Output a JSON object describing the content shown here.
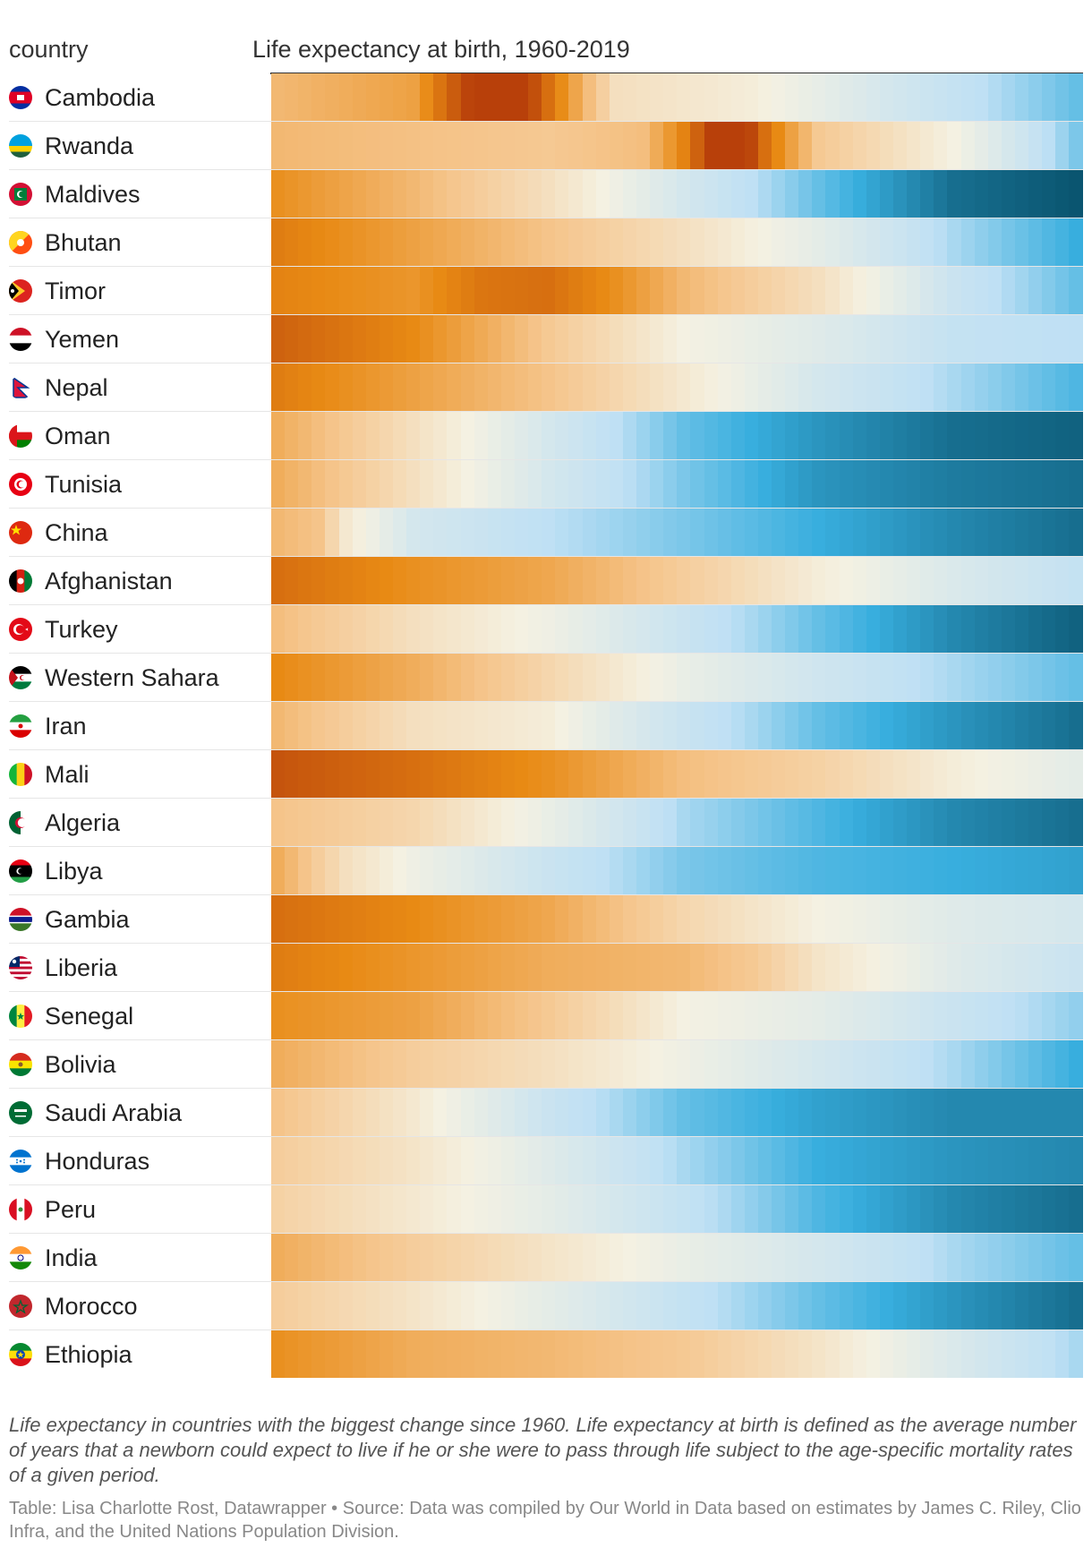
{
  "header": {
    "country_label": "country",
    "column_title": "Life expectancy at birth, 1960-2019"
  },
  "notes": {
    "description": "Life expectancy in countries with the biggest change since 1960. Life expectancy at birth is defined as the average number of years that a newborn could expect to live if he or she were to pass through life subject to the age-specific mortality rates of a given period.",
    "source": "Table: Lisa Charlotte Rost, Datawrapper • Source: Data was compiled by Our World in Data based on estimates by James C. Riley, Clio Infra, and the United Nations Population Division."
  },
  "colors": {
    "low": "#b8400a",
    "orange": "#e88a14",
    "light_orange": "#f5c48a",
    "cream": "#f4f1e2",
    "light_blue": "#bfe0f4",
    "blue": "#38aede",
    "dark_blue": "#0a5570"
  },
  "chart_data": {
    "type": "heatmap",
    "x_start": 1960,
    "x_end": 2019,
    "rows": [
      {
        "country": "Cambodia",
        "flag": "cambodia-flag",
        "anchors": [
          [
            1960,
            44
          ],
          [
            1970,
            40
          ],
          [
            1975,
            22
          ],
          [
            1977,
            18
          ],
          [
            1980,
            32
          ],
          [
            1983,
            45
          ],
          [
            1985,
            52
          ],
          [
            1995,
            55
          ],
          [
            2005,
            62
          ],
          [
            2019,
            70
          ]
        ]
      },
      {
        "country": "Rwanda",
        "flag": "rwanda-flag",
        "anchors": [
          [
            1960,
            44
          ],
          [
            1980,
            47
          ],
          [
            1987,
            45
          ],
          [
            1990,
            35
          ],
          [
            1992,
            25
          ],
          [
            1994,
            20
          ],
          [
            1996,
            32
          ],
          [
            1998,
            40
          ],
          [
            2000,
            47
          ],
          [
            2010,
            56
          ],
          [
            2019,
            69
          ]
        ]
      },
      {
        "country": "Maldives",
        "flag": "maldives-flag",
        "anchors": [
          [
            1960,
            37
          ],
          [
            1970,
            44
          ],
          [
            1980,
            52
          ],
          [
            1990,
            62
          ],
          [
            2000,
            70
          ],
          [
            2010,
            77
          ],
          [
            2019,
            79
          ]
        ]
      },
      {
        "country": "Bhutan",
        "flag": "bhutan-flag",
        "anchors": [
          [
            1960,
            34
          ],
          [
            1970,
            40
          ],
          [
            1980,
            46
          ],
          [
            1990,
            52
          ],
          [
            2000,
            59
          ],
          [
            2010,
            67
          ],
          [
            2019,
            72
          ]
        ]
      },
      {
        "country": "Timor",
        "flag": "timor-flag",
        "anchors": [
          [
            1960,
            35
          ],
          [
            1970,
            38
          ],
          [
            1975,
            33
          ],
          [
            1980,
            32
          ],
          [
            1985,
            37
          ],
          [
            1990,
            44
          ],
          [
            2000,
            52
          ],
          [
            2010,
            64
          ],
          [
            2019,
            70
          ]
        ]
      },
      {
        "country": "Yemen",
        "flag": "yemen-flag",
        "anchors": [
          [
            1960,
            30
          ],
          [
            1970,
            36
          ],
          [
            1980,
            47
          ],
          [
            1990,
            56
          ],
          [
            2000,
            60
          ],
          [
            2010,
            65
          ],
          [
            2019,
            66
          ]
        ]
      },
      {
        "country": "Nepal",
        "flag": "nepal-flag",
        "anchors": [
          [
            1960,
            34
          ],
          [
            1970,
            40
          ],
          [
            1980,
            46
          ],
          [
            1990,
            54
          ],
          [
            2000,
            62
          ],
          [
            2010,
            67
          ],
          [
            2019,
            71
          ]
        ]
      },
      {
        "country": "Oman",
        "flag": "oman-flag",
        "anchors": [
          [
            1960,
            42
          ],
          [
            1970,
            52
          ],
          [
            1980,
            62
          ],
          [
            1990,
            70
          ],
          [
            2000,
            74
          ],
          [
            2010,
            77
          ],
          [
            2019,
            78
          ]
        ]
      },
      {
        "country": "Tunisia",
        "flag": "tunisia-flag",
        "anchors": [
          [
            1960,
            42
          ],
          [
            1970,
            52
          ],
          [
            1980,
            62
          ],
          [
            1990,
            69
          ],
          [
            2000,
            74
          ],
          [
            2010,
            76
          ],
          [
            2019,
            77
          ]
        ]
      },
      {
        "country": "China",
        "flag": "china-flag",
        "anchors": [
          [
            1960,
            44
          ],
          [
            1963,
            46
          ],
          [
            1965,
            54
          ],
          [
            1970,
            62
          ],
          [
            1980,
            66
          ],
          [
            1990,
            69
          ],
          [
            2000,
            72
          ],
          [
            2010,
            75
          ],
          [
            2019,
            77
          ]
        ]
      },
      {
        "country": "Afghanistan",
        "flag": "afghanistan-flag",
        "anchors": [
          [
            1960,
            32
          ],
          [
            1970,
            37
          ],
          [
            1980,
            41
          ],
          [
            1990,
            48
          ],
          [
            2000,
            55
          ],
          [
            2010,
            61
          ],
          [
            2019,
            65
          ]
        ]
      },
      {
        "country": "Turkey",
        "flag": "turkey-flag",
        "anchors": [
          [
            1960,
            45
          ],
          [
            1970,
            52
          ],
          [
            1980,
            57
          ],
          [
            1990,
            64
          ],
          [
            2000,
            70
          ],
          [
            2010,
            75
          ],
          [
            2019,
            78
          ]
        ]
      },
      {
        "country": "Western Sahara",
        "flag": "western-sahara-flag",
        "anchors": [
          [
            1960,
            36
          ],
          [
            1970,
            42
          ],
          [
            1980,
            50
          ],
          [
            1990,
            58
          ],
          [
            2000,
            63
          ],
          [
            2010,
            67
          ],
          [
            2019,
            70
          ]
        ]
      },
      {
        "country": "Iran",
        "flag": "iran-flag",
        "anchors": [
          [
            1960,
            44
          ],
          [
            1970,
            52
          ],
          [
            1980,
            55
          ],
          [
            1985,
            60
          ],
          [
            1990,
            64
          ],
          [
            2000,
            70
          ],
          [
            2010,
            74
          ],
          [
            2019,
            77
          ]
        ]
      },
      {
        "country": "Mali",
        "flag": "mali-flag",
        "anchors": [
          [
            1960,
            28
          ],
          [
            1970,
            32
          ],
          [
            1980,
            37
          ],
          [
            1990,
            45
          ],
          [
            2000,
            49
          ],
          [
            2010,
            55
          ],
          [
            2019,
            59
          ]
        ]
      },
      {
        "country": "Algeria",
        "flag": "algeria-flag",
        "anchors": [
          [
            1960,
            46
          ],
          [
            1970,
            50
          ],
          [
            1980,
            58
          ],
          [
            1990,
            67
          ],
          [
            2000,
            71
          ],
          [
            2010,
            75
          ],
          [
            2019,
            77
          ]
        ]
      },
      {
        "country": "Libya",
        "flag": "libya-flag",
        "anchors": [
          [
            1960,
            42
          ],
          [
            1965,
            52
          ],
          [
            1970,
            57
          ],
          [
            1980,
            64
          ],
          [
            1990,
            69
          ],
          [
            2000,
            71
          ],
          [
            2010,
            72
          ],
          [
            2019,
            73
          ]
        ]
      },
      {
        "country": "Gambia",
        "flag": "gambia-flag",
        "anchors": [
          [
            1960,
            32
          ],
          [
            1970,
            36
          ],
          [
            1980,
            41
          ],
          [
            1990,
            50
          ],
          [
            2000,
            56
          ],
          [
            2010,
            60
          ],
          [
            2019,
            62
          ]
        ]
      },
      {
        "country": "Liberia",
        "flag": "liberia-flag",
        "anchors": [
          [
            1960,
            34
          ],
          [
            1970,
            38
          ],
          [
            1980,
            42
          ],
          [
            1990,
            44
          ],
          [
            1995,
            47
          ],
          [
            2000,
            53
          ],
          [
            2010,
            60
          ],
          [
            2019,
            64
          ]
        ]
      },
      {
        "country": "Senegal",
        "flag": "senegal-flag",
        "anchors": [
          [
            1960,
            37
          ],
          [
            1970,
            40
          ],
          [
            1980,
            47
          ],
          [
            1990,
            56
          ],
          [
            2000,
            59
          ],
          [
            2010,
            64
          ],
          [
            2019,
            68
          ]
        ]
      },
      {
        "country": "Bolivia",
        "flag": "bolivia-flag",
        "anchors": [
          [
            1960,
            42
          ],
          [
            1970,
            48
          ],
          [
            1980,
            52
          ],
          [
            1990,
            57
          ],
          [
            2000,
            62
          ],
          [
            2010,
            67
          ],
          [
            2019,
            72
          ]
        ]
      },
      {
        "country": "Saudi Arabia",
        "flag": "saudi-arabia-flag",
        "anchors": [
          [
            1960,
            46
          ],
          [
            1970,
            54
          ],
          [
            1980,
            64
          ],
          [
            1990,
            70
          ],
          [
            2000,
            73
          ],
          [
            2010,
            75
          ],
          [
            2019,
            75
          ]
        ]
      },
      {
        "country": "Honduras",
        "flag": "honduras-flag",
        "anchors": [
          [
            1960,
            48
          ],
          [
            1970,
            53
          ],
          [
            1980,
            60
          ],
          [
            1990,
            67
          ],
          [
            2000,
            72
          ],
          [
            2010,
            74
          ],
          [
            2019,
            75
          ]
        ]
      },
      {
        "country": "Peru",
        "flag": "peru-flag",
        "anchors": [
          [
            1960,
            49
          ],
          [
            1970,
            54
          ],
          [
            1980,
            59
          ],
          [
            1990,
            65
          ],
          [
            2000,
            71
          ],
          [
            2010,
            75
          ],
          [
            2019,
            77
          ]
        ]
      },
      {
        "country": "India",
        "flag": "india-flag",
        "anchors": [
          [
            1960,
            42
          ],
          [
            1970,
            48
          ],
          [
            1980,
            53
          ],
          [
            1990,
            58
          ],
          [
            2000,
            62
          ],
          [
            2010,
            67
          ],
          [
            2019,
            70
          ]
        ]
      },
      {
        "country": "Morocco",
        "flag": "morocco-flag",
        "anchors": [
          [
            1960,
            48
          ],
          [
            1970,
            53
          ],
          [
            1980,
            59
          ],
          [
            1990,
            65
          ],
          [
            2000,
            70
          ],
          [
            2010,
            74
          ],
          [
            2019,
            77
          ]
        ]
      },
      {
        "country": "Ethiopia",
        "flag": "ethiopia-flag",
        "anchors": [
          [
            1960,
            37
          ],
          [
            1970,
            42
          ],
          [
            1980,
            44
          ],
          [
            1990,
            47
          ],
          [
            2000,
            53
          ],
          [
            2010,
            61
          ],
          [
            2019,
            67
          ]
        ]
      }
    ]
  }
}
